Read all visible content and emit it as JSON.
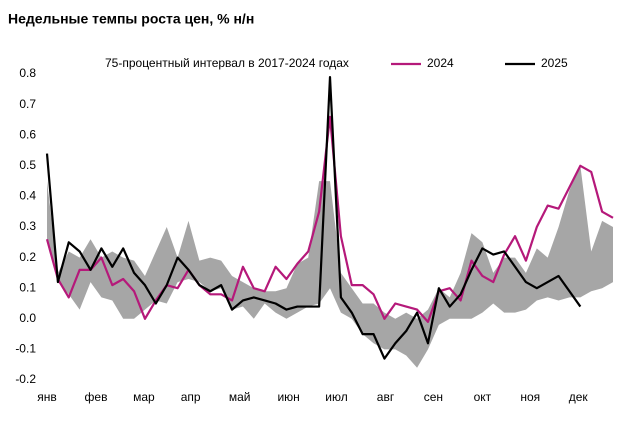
{
  "chart_data": {
    "type": "line",
    "title": "Недельные темпы роста цен, % н/н",
    "x": [
      1,
      2,
      3,
      4,
      5,
      6,
      7,
      8,
      9,
      10,
      11,
      12,
      13,
      14,
      15,
      16,
      17,
      18,
      19,
      20,
      21,
      22,
      23,
      24,
      25,
      26,
      27,
      28,
      29,
      30,
      31,
      32,
      33,
      34,
      35,
      36,
      37,
      38,
      39,
      40,
      41,
      42,
      43,
      44,
      45,
      46,
      47,
      48,
      49,
      50,
      51,
      52,
      53
    ],
    "xlim": [
      1,
      53
    ],
    "xticks": [
      {
        "value": 1,
        "label": "янв"
      },
      {
        "value": 5.5,
        "label": "фев"
      },
      {
        "value": 9.9,
        "label": "мар"
      },
      {
        "value": 14.2,
        "label": "апр"
      },
      {
        "value": 18.7,
        "label": "май"
      },
      {
        "value": 23.2,
        "label": "июн"
      },
      {
        "value": 27.6,
        "label": "июл"
      },
      {
        "value": 32.1,
        "label": "авг"
      },
      {
        "value": 36.5,
        "label": "сен"
      },
      {
        "value": 41,
        "label": "окт"
      },
      {
        "value": 45.4,
        "label": "ноя"
      },
      {
        "value": 49.8,
        "label": "дек"
      }
    ],
    "ylim": [
      -0.2,
      0.8
    ],
    "yticks": [
      0.8,
      0.7,
      0.6,
      0.5,
      0.4,
      0.3,
      0.2,
      0.1,
      {
        "value": 0,
        "label": "0.0"
      },
      -0.1,
      -0.2
    ],
    "grid": false,
    "band": {
      "name": "75-процентный интервал в 2017-2024 годах",
      "color": "#a6a6a6",
      "high": [
        0.45,
        0.15,
        0.22,
        0.2,
        0.26,
        0.2,
        0.22,
        0.2,
        0.19,
        0.14,
        0.22,
        0.3,
        0.2,
        0.32,
        0.19,
        0.2,
        0.19,
        0.14,
        0.12,
        0.1,
        0.09,
        0.09,
        0.1,
        0.18,
        0.2,
        0.45,
        0.45,
        0.15,
        0.1,
        0.05,
        0.05,
        0.02,
        0.0,
        0.02,
        0.0,
        0.03,
        0.1,
        0.07,
        0.15,
        0.28,
        0.25,
        0.15,
        0.2,
        0.2,
        0.15,
        0.23,
        0.2,
        0.3,
        0.42,
        0.5,
        0.22,
        0.32,
        0.3
      ],
      "low": [
        0.25,
        0.12,
        0.08,
        0.03,
        0.12,
        0.07,
        0.06,
        0.0,
        0.0,
        0.03,
        0.06,
        0.05,
        0.12,
        0.13,
        0.12,
        0.09,
        0.1,
        0.03,
        0.04,
        0.0,
        0.05,
        0.02,
        0.0,
        0.02,
        0.04,
        0.05,
        0.1,
        0.02,
        0.0,
        -0.05,
        -0.08,
        -0.1,
        -0.1,
        -0.12,
        -0.16,
        -0.1,
        -0.02,
        0.0,
        0.0,
        0.0,
        0.02,
        0.05,
        0.02,
        0.02,
        0.03,
        0.06,
        0.07,
        0.06,
        0.07,
        0.07,
        0.09,
        0.1,
        0.12
      ]
    },
    "series": [
      {
        "name": "2024",
        "color": "#b5197a",
        "values": [
          0.26,
          0.13,
          0.07,
          0.16,
          0.16,
          0.2,
          0.11,
          0.13,
          0.09,
          0.0,
          0.06,
          0.11,
          0.1,
          0.16,
          0.11,
          0.08,
          0.08,
          0.06,
          0.17,
          0.1,
          0.09,
          0.17,
          0.13,
          0.18,
          0.22,
          0.35,
          0.66,
          0.27,
          0.11,
          0.11,
          0.08,
          0.0,
          0.05,
          0.04,
          0.03,
          -0.01,
          0.09,
          0.1,
          0.06,
          0.19,
          0.14,
          0.12,
          0.21,
          0.27,
          0.19,
          0.3,
          0.37,
          0.36,
          0.43,
          0.5,
          0.48,
          0.35,
          0.33
        ]
      },
      {
        "name": "2025",
        "color": "#000000",
        "values": [
          0.54,
          0.12,
          0.25,
          0.22,
          0.16,
          0.23,
          0.17,
          0.23,
          0.15,
          0.11,
          0.05,
          0.11,
          0.2,
          0.16,
          0.11,
          0.09,
          0.11,
          0.03,
          0.06,
          0.07,
          0.06,
          0.05,
          0.03,
          0.04,
          0.04,
          0.04,
          0.79,
          0.07,
          0.02,
          -0.05,
          -0.05,
          -0.13,
          -0.08,
          -0.04,
          0.02,
          -0.08,
          0.1,
          0.04,
          0.08,
          0.16,
          0.23,
          0.21,
          0.22,
          0.17,
          0.12,
          0.1,
          0.12,
          0.14,
          0.09,
          0.04,
          null,
          null,
          null
        ]
      }
    ]
  }
}
